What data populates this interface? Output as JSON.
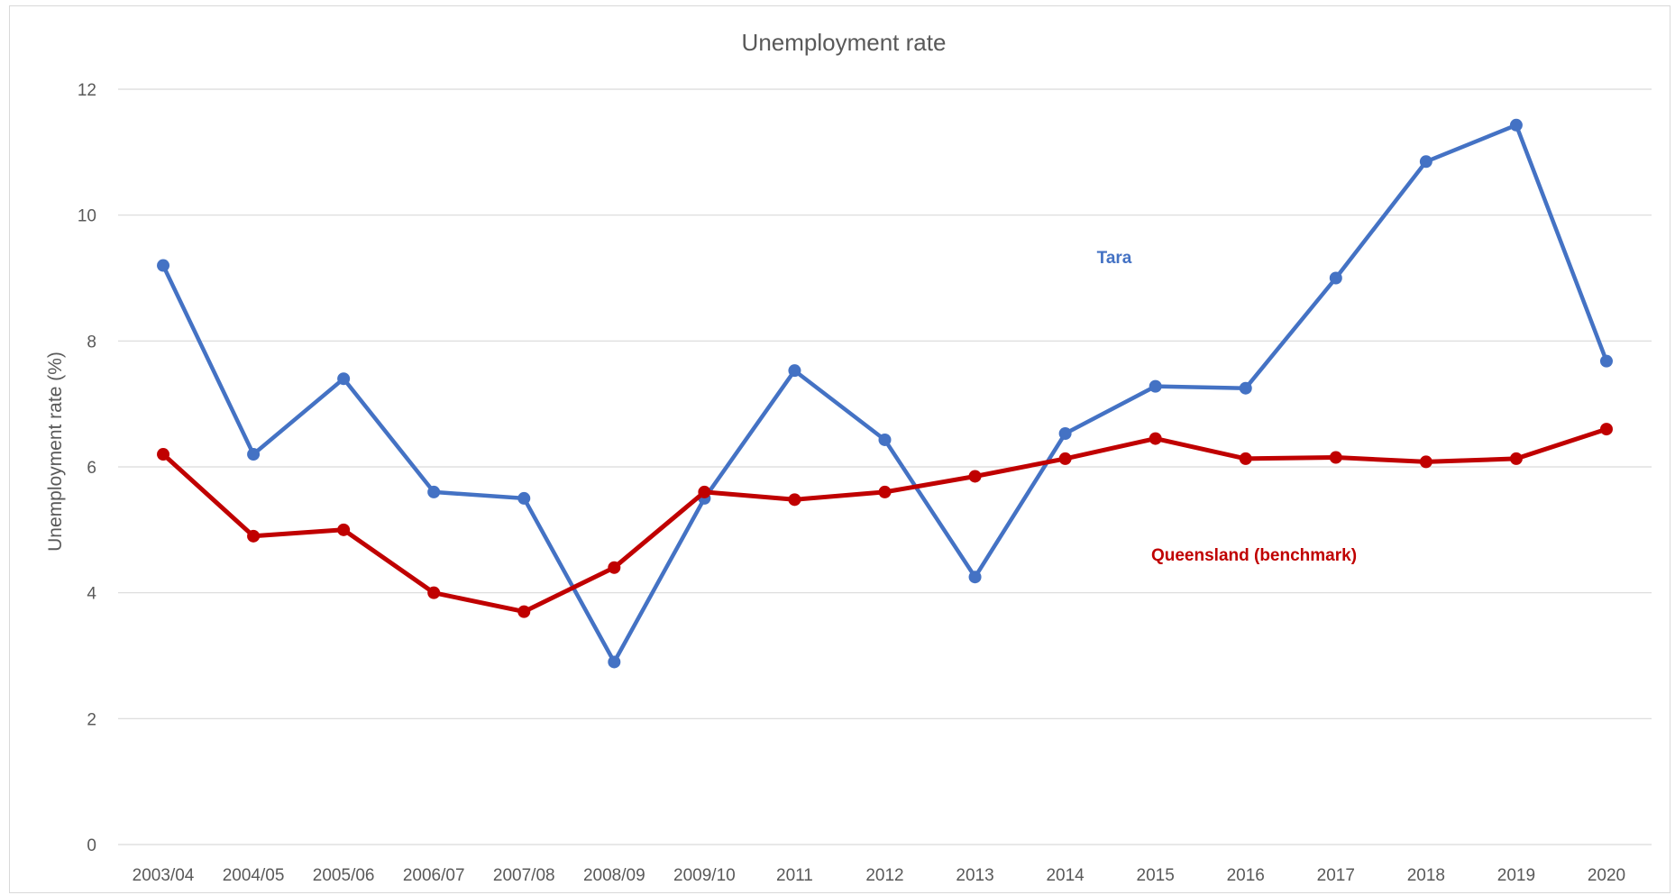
{
  "chart_data": {
    "type": "line",
    "title": "Unemployment rate",
    "xlabel": "",
    "ylabel": "Unemployment rate (%)",
    "ylim": [
      0,
      12
    ],
    "yticks": [
      0,
      2,
      4,
      6,
      8,
      10,
      12
    ],
    "grid": true,
    "categories": [
      "2003/04",
      "2004/05",
      "2005/06",
      "2006/07",
      "2007/08",
      "2008/09",
      "2009/10",
      "2011",
      "2012",
      "2013",
      "2014",
      "2015",
      "2016",
      "2017",
      "2018",
      "2019",
      "2020"
    ],
    "series": [
      {
        "name": "Tara",
        "color": "#4472C4",
        "values": [
          9.2,
          6.2,
          7.4,
          5.6,
          5.5,
          2.9,
          5.5,
          7.53,
          6.43,
          4.25,
          6.53,
          7.28,
          7.25,
          9.0,
          10.85,
          11.43,
          7.68
        ]
      },
      {
        "name": "Queensland (benchmark)",
        "color": "#C00000",
        "values": [
          6.2,
          4.9,
          5.0,
          4.0,
          3.7,
          4.4,
          5.6,
          5.48,
          5.6,
          5.85,
          6.13,
          6.45,
          6.13,
          6.15,
          6.08,
          6.13,
          6.6
        ]
      }
    ]
  },
  "colors": {
    "gridline": "#d9d9d9",
    "text": "#595959"
  }
}
